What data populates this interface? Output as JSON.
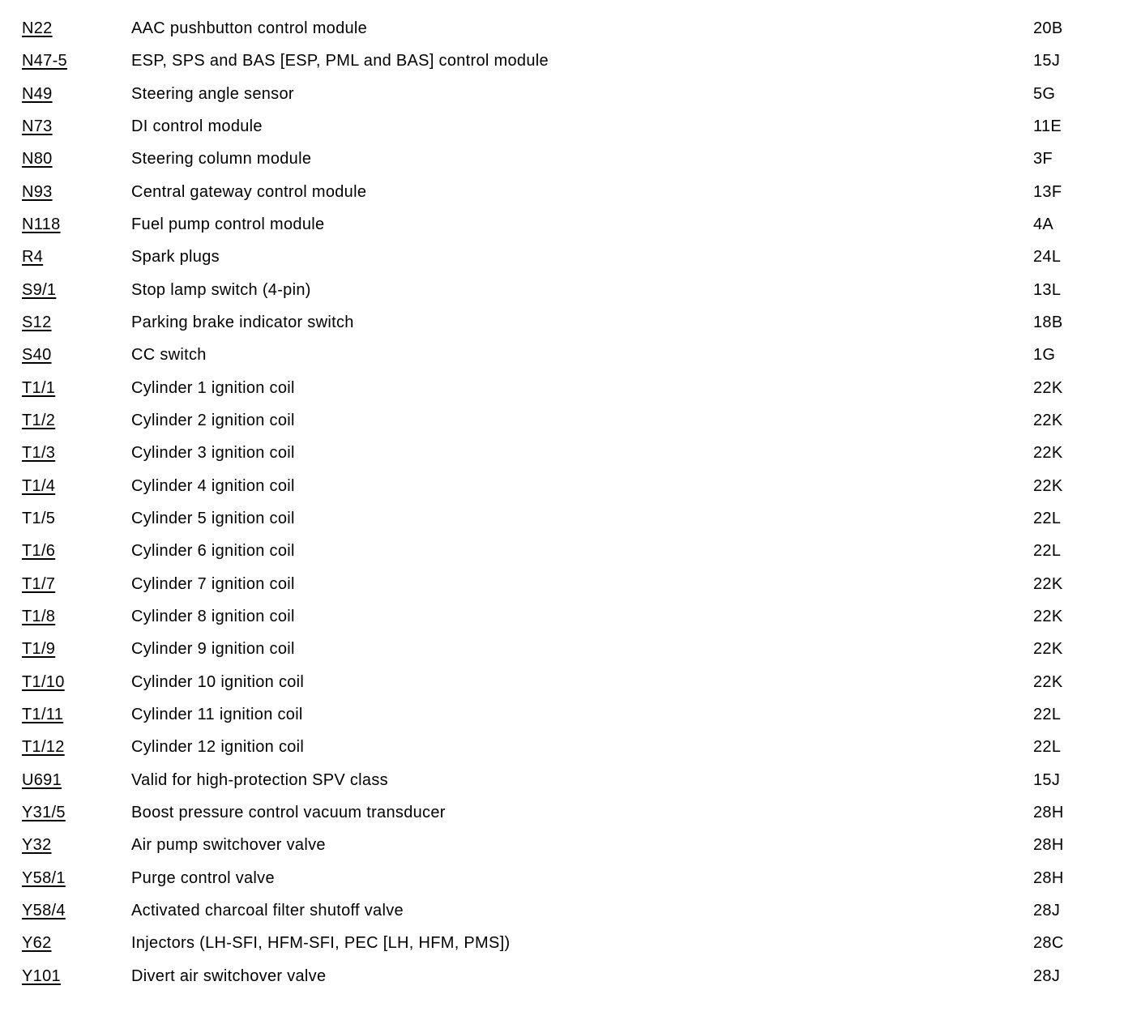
{
  "page": {
    "background_color": "#ffffff",
    "text_color": "#000000"
  },
  "table": {
    "columns": [
      "code",
      "description",
      "location"
    ],
    "rows": [
      {
        "code": "N22",
        "underlined": true,
        "description": "AAC pushbutton control module",
        "location": "20B"
      },
      {
        "code": "N47-5",
        "underlined": true,
        "description": "ESP, SPS and BAS [ESP, PML and BAS] control module",
        "location": "15J"
      },
      {
        "code": "N49",
        "underlined": true,
        "description": "Steering angle sensor",
        "location": "5G"
      },
      {
        "code": "N73",
        "underlined": true,
        "description": "DI control module",
        "location": "11E"
      },
      {
        "code": "N80",
        "underlined": true,
        "description": "Steering column module",
        "location": "3F"
      },
      {
        "code": "N93",
        "underlined": true,
        "description": "Central gateway control module",
        "location": "13F"
      },
      {
        "code": "N118",
        "underlined": true,
        "description": "Fuel pump control module",
        "location": "4A"
      },
      {
        "code": "R4",
        "underlined": true,
        "description": "Spark plugs",
        "location": "24L"
      },
      {
        "code": "S9/1",
        "underlined": true,
        "description": "Stop lamp switch (4-pin)",
        "location": "13L"
      },
      {
        "code": "S12",
        "underlined": true,
        "description": "Parking brake indicator switch",
        "location": "18B"
      },
      {
        "code": "S40",
        "underlined": true,
        "description": "CC switch",
        "location": "1G"
      },
      {
        "code": "T1/1",
        "underlined": true,
        "description": "Cylinder 1 ignition coil",
        "location": "22K"
      },
      {
        "code": "T1/2",
        "underlined": true,
        "description": "Cylinder 2 ignition coil",
        "location": "22K"
      },
      {
        "code": "T1/3",
        "underlined": true,
        "description": "Cylinder 3 ignition coil",
        "location": "22K"
      },
      {
        "code": "T1/4",
        "underlined": true,
        "description": "Cylinder 4 ignition coil",
        "location": "22K"
      },
      {
        "code": "T1/5",
        "underlined": false,
        "description": "Cylinder 5 ignition coil",
        "location": "22L"
      },
      {
        "code": "T1/6",
        "underlined": true,
        "description": "Cylinder 6 ignition coil",
        "location": "22L"
      },
      {
        "code": "T1/7",
        "underlined": true,
        "description": "Cylinder 7 ignition coil",
        "location": "22K"
      },
      {
        "code": "T1/8",
        "underlined": true,
        "description": "Cylinder 8 ignition coil",
        "location": "22K"
      },
      {
        "code": "T1/9",
        "underlined": true,
        "description": "Cylinder 9 ignition coil",
        "location": "22K"
      },
      {
        "code": "T1/10",
        "underlined": true,
        "description": "Cylinder 10 ignition coil",
        "location": "22K"
      },
      {
        "code": "T1/11",
        "underlined": true,
        "description": "Cylinder 11 ignition coil",
        "location": "22L"
      },
      {
        "code": "T1/12",
        "underlined": true,
        "description": "Cylinder 12 ignition coil",
        "location": "22L"
      },
      {
        "code": "U691",
        "underlined": true,
        "description": "Valid for high-protection SPV class",
        "location": "15J"
      },
      {
        "code": "Y31/5",
        "underlined": true,
        "description": "Boost pressure control vacuum transducer",
        "location": "28H"
      },
      {
        "code": "Y32",
        "underlined": true,
        "description": "Air pump switchover valve",
        "location": "28H"
      },
      {
        "code": "Y58/1",
        "underlined": true,
        "description": "Purge control valve",
        "location": "28H"
      },
      {
        "code": "Y58/4",
        "underlined": true,
        "description": "Activated charcoal filter shutoff valve",
        "location": "28J"
      },
      {
        "code": "Y62",
        "underlined": true,
        "description": "Injectors (LH-SFI, HFM-SFI, PEC [LH, HFM, PMS])",
        "location": "28C"
      },
      {
        "code": "Y101",
        "underlined": true,
        "description": "Divert air switchover valve",
        "location": "28J"
      }
    ]
  }
}
